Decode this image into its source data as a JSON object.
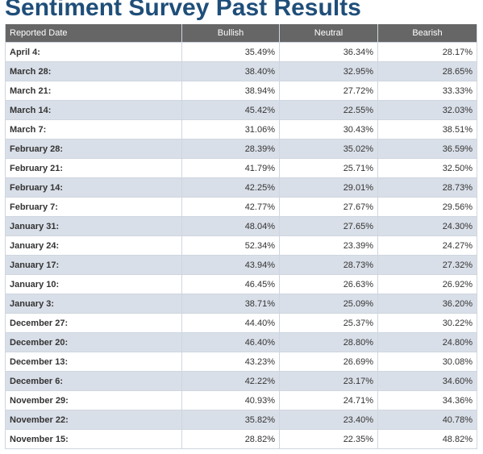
{
  "page": {
    "title": "Sentiment Survey Past Results"
  },
  "table": {
    "headers": [
      "Reported Date",
      "Bullish",
      "Neutral",
      "Bearish"
    ],
    "rows": [
      [
        "April 4:",
        "35.49%",
        "36.34%",
        "28.17%"
      ],
      [
        "March 28:",
        "38.40%",
        "32.95%",
        "28.65%"
      ],
      [
        "March 21:",
        "38.94%",
        "27.72%",
        "33.33%"
      ],
      [
        "March 14:",
        "45.42%",
        "22.55%",
        "32.03%"
      ],
      [
        "March 7:",
        "31.06%",
        "30.43%",
        "38.51%"
      ],
      [
        "February 28:",
        "28.39%",
        "35.02%",
        "36.59%"
      ],
      [
        "February 21:",
        "41.79%",
        "25.71%",
        "32.50%"
      ],
      [
        "February 14:",
        "42.25%",
        "29.01%",
        "28.73%"
      ],
      [
        "February 7:",
        "42.77%",
        "27.67%",
        "29.56%"
      ],
      [
        "January 31:",
        "48.04%",
        "27.65%",
        "24.30%"
      ],
      [
        "January 24:",
        "52.34%",
        "23.39%",
        "24.27%"
      ],
      [
        "January 17:",
        "43.94%",
        "28.73%",
        "27.32%"
      ],
      [
        "January 10:",
        "46.45%",
        "26.63%",
        "26.92%"
      ],
      [
        "January 3:",
        "38.71%",
        "25.09%",
        "36.20%"
      ],
      [
        "December 27:",
        "44.40%",
        "25.37%",
        "30.22%"
      ],
      [
        "December 20:",
        "46.40%",
        "28.80%",
        "24.80%"
      ],
      [
        "December 13:",
        "43.23%",
        "26.69%",
        "30.08%"
      ],
      [
        "December 6:",
        "42.22%",
        "23.17%",
        "34.60%"
      ],
      [
        "November 29:",
        "40.93%",
        "24.71%",
        "34.36%"
      ],
      [
        "November 22:",
        "35.82%",
        "23.40%",
        "40.78%"
      ],
      [
        "November 15:",
        "28.82%",
        "22.35%",
        "48.82%"
      ]
    ]
  },
  "colors": {
    "title": "#1f4e79",
    "header_bg": "#666666",
    "row_alt_bg": "#d9dfe8",
    "border": "#cfd6e0"
  }
}
